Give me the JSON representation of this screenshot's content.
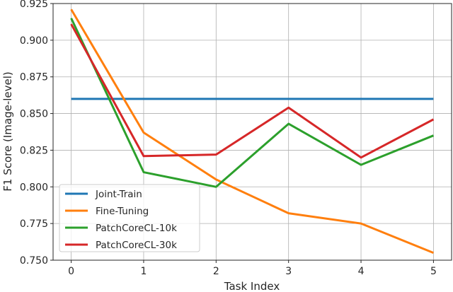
{
  "chart_data": {
    "type": "line",
    "xlabel": "Task Index",
    "ylabel": "F1 Score (Image-level)",
    "x": [
      0,
      1,
      2,
      3,
      4,
      5
    ],
    "xlim": [
      -0.25,
      5.25
    ],
    "ylim": [
      0.75,
      0.925
    ],
    "xticks": [
      "0",
      "1",
      "2",
      "3",
      "4",
      "5"
    ],
    "yticks": [
      "0.750",
      "0.775",
      "0.800",
      "0.825",
      "0.850",
      "0.875",
      "0.900",
      "0.925"
    ],
    "grid": true,
    "legend_position": "lower-left",
    "series": [
      {
        "name": "Joint-Train",
        "color": "#1f77b4",
        "values": [
          0.86,
          0.86,
          0.86,
          0.86,
          0.86,
          0.86
        ]
      },
      {
        "name": "Fine-Tuning",
        "color": "#ff7f0e",
        "values": [
          0.921,
          0.837,
          0.805,
          0.782,
          0.775,
          0.755
        ]
      },
      {
        "name": "PatchCoreCL-10k",
        "color": "#2ca02c",
        "values": [
          0.915,
          0.81,
          0.8,
          0.843,
          0.815,
          0.835
        ]
      },
      {
        "name": "PatchCoreCL-30k",
        "color": "#d62728",
        "values": [
          0.911,
          0.821,
          0.822,
          0.854,
          0.82,
          0.846
        ]
      }
    ]
  }
}
